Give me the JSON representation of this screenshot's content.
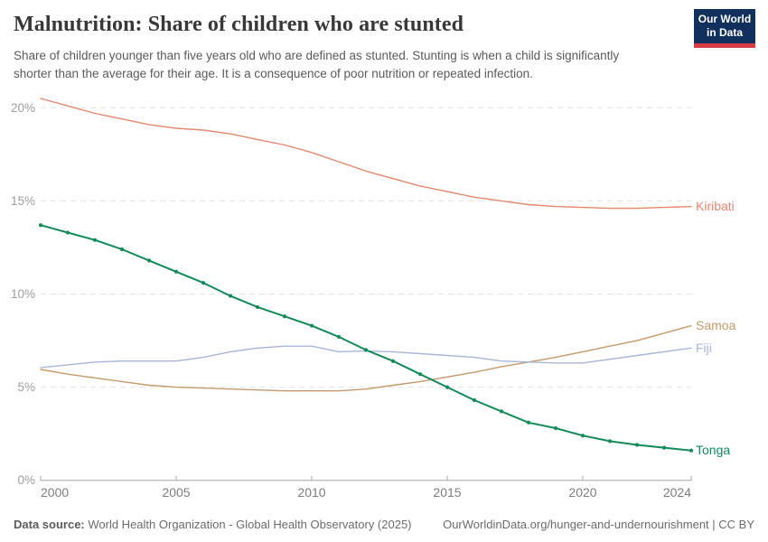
{
  "header": {
    "title": "Malnutrition: Share of children who are stunted",
    "subtitle_line1": "Share of children younger than five years old who are defined as stunted. Stunting is when a child is significantly",
    "subtitle_line2": "shorter than the average for their age. It is a consequence of poor nutrition or repeated infection.",
    "logo": {
      "line1": "Our World",
      "line2": "in Data",
      "bg_color": "#12305c",
      "accent_color": "#d73b43"
    }
  },
  "footer": {
    "source_label": "Data source:",
    "source_text": " World Health Organization - Global Health Observatory (2025)",
    "link_text": "OurWorldinData.org/hunger-and-undernourishment | CC BY"
  },
  "chart_data": {
    "type": "line",
    "title": "Malnutrition: Share of children who are stunted",
    "xlabel": "",
    "ylabel": "",
    "x": [
      2000,
      2001,
      2002,
      2003,
      2004,
      2005,
      2006,
      2007,
      2008,
      2009,
      2010,
      2011,
      2012,
      2013,
      2014,
      2015,
      2016,
      2017,
      2018,
      2019,
      2020,
      2021,
      2022,
      2023,
      2024
    ],
    "xticks": [
      2000,
      2005,
      2010,
      2015,
      2020,
      2024
    ],
    "xtick_labels": [
      "2000",
      "2005",
      "2010",
      "2015",
      "2020",
      "2024"
    ],
    "yticks": [
      0,
      5,
      10,
      15,
      20
    ],
    "ytick_labels": [
      "0%",
      "5%",
      "10%",
      "15%",
      "20%"
    ],
    "ylim": [
      0,
      21
    ],
    "xlim": [
      2000,
      2024
    ],
    "grid": "horizontal-dashed",
    "legend_position": "right-of-line-end-labels",
    "series": [
      {
        "name": "Kiribati",
        "color": "#e2886e",
        "markers": false,
        "values": [
          20.5,
          20.1,
          19.7,
          19.4,
          19.1,
          18.9,
          18.8,
          18.6,
          18.3,
          18.0,
          17.6,
          17.1,
          16.6,
          16.2,
          15.8,
          15.5,
          15.2,
          15.0,
          14.8,
          14.7,
          14.65,
          14.6,
          14.6,
          14.65,
          14.7
        ]
      },
      {
        "name": "Samoa",
        "color": "#c49a6c",
        "markers": false,
        "values": [
          5.95,
          5.7,
          5.5,
          5.3,
          5.1,
          5.0,
          4.95,
          4.9,
          4.85,
          4.8,
          4.8,
          4.8,
          4.9,
          5.1,
          5.3,
          5.55,
          5.8,
          6.1,
          6.35,
          6.6,
          6.9,
          7.2,
          7.5,
          7.9,
          8.3
        ]
      },
      {
        "name": "Fiji",
        "color": "#a7b6d7",
        "markers": false,
        "values": [
          6.05,
          6.2,
          6.35,
          6.4,
          6.4,
          6.4,
          6.6,
          6.9,
          7.1,
          7.2,
          7.2,
          6.9,
          6.95,
          6.9,
          6.8,
          6.7,
          6.6,
          6.4,
          6.35,
          6.3,
          6.3,
          6.5,
          6.7,
          6.9,
          7.1
        ]
      },
      {
        "name": "Tonga",
        "color": "#128a5a",
        "markers": true,
        "values": [
          13.7,
          13.3,
          12.9,
          12.4,
          11.8,
          11.2,
          10.6,
          9.9,
          9.3,
          8.8,
          8.3,
          7.7,
          7.0,
          6.4,
          5.7,
          5.0,
          4.3,
          3.7,
          3.1,
          2.8,
          2.4,
          2.1,
          1.9,
          1.75,
          1.6
        ]
      }
    ]
  }
}
